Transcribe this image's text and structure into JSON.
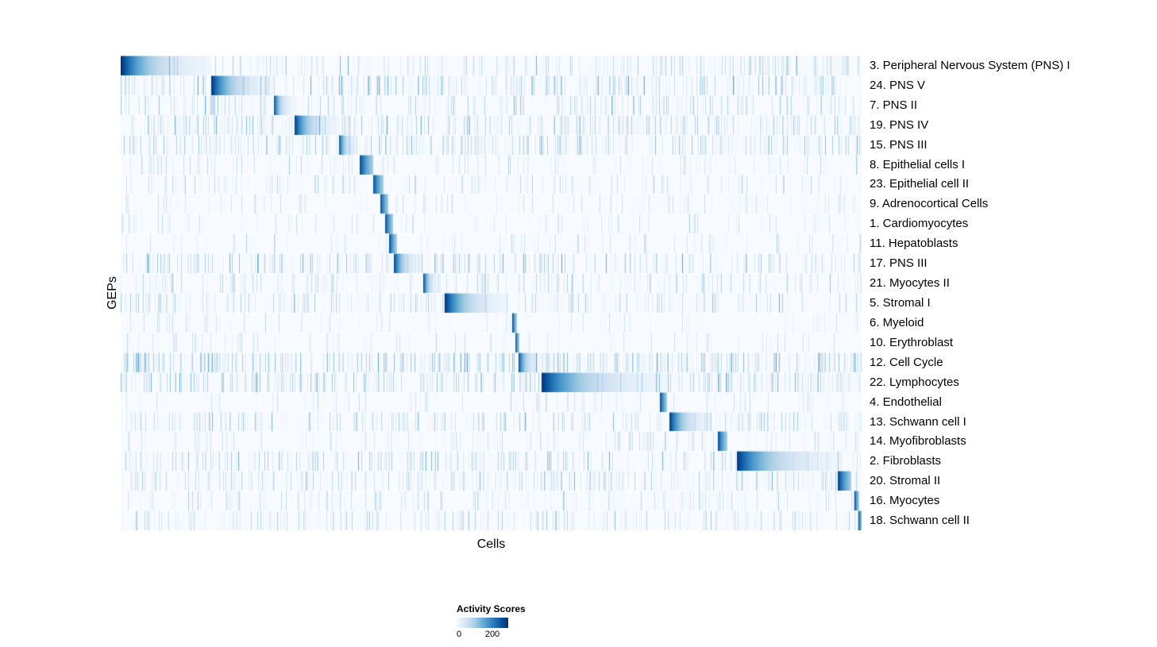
{
  "chart_data": {
    "type": "heatmap",
    "title": "",
    "xlabel": "Cells",
    "ylabel": "GEPs",
    "x_tick_labels": [],
    "color_scale_max": 250,
    "colormap": [
      "#f7fbff",
      "#deebf7",
      "#c6dbef",
      "#9ecae1",
      "#6baed6",
      "#4292c6",
      "#2171b5",
      "#08519c",
      "#08306b"
    ],
    "legend": {
      "title": "Activity Scores",
      "min": 0,
      "max": 200,
      "tick_labels": [
        "0",
        "200"
      ]
    },
    "rows": [
      {
        "label": "3. Peripheral Nervous System (PNS) I",
        "block_start": 0.0,
        "block_end": 0.122,
        "peak": 250,
        "noise_freq": 0.3,
        "noise_amp": 90
      },
      {
        "label": "24. PNS V",
        "block_start": 0.122,
        "block_end": 0.206,
        "peak": 245,
        "noise_freq": 0.32,
        "noise_amp": 100
      },
      {
        "label": "7. PNS II",
        "block_start": 0.206,
        "block_end": 0.233,
        "peak": 235,
        "noise_freq": 0.28,
        "noise_amp": 95
      },
      {
        "label": "19. PNS IV",
        "block_start": 0.234,
        "block_end": 0.294,
        "peak": 240,
        "noise_freq": 0.34,
        "noise_amp": 100
      },
      {
        "label": "15. PNS III",
        "block_start": 0.294,
        "block_end": 0.32,
        "peak": 225,
        "noise_freq": 0.38,
        "noise_amp": 90
      },
      {
        "label": "8. Epithelial cells I",
        "block_start": 0.322,
        "block_end": 0.34,
        "peak": 230,
        "noise_freq": 0.14,
        "noise_amp": 70
      },
      {
        "label": "23. Epithelial cell II",
        "block_start": 0.34,
        "block_end": 0.354,
        "peak": 230,
        "noise_freq": 0.16,
        "noise_amp": 75
      },
      {
        "label": "9. Adrenocortical Cells",
        "block_start": 0.35,
        "block_end": 0.361,
        "peak": 225,
        "noise_freq": 0.12,
        "noise_amp": 65
      },
      {
        "label": "1. Cardiomyocytes",
        "block_start": 0.356,
        "block_end": 0.367,
        "peak": 235,
        "noise_freq": 0.12,
        "noise_amp": 65
      },
      {
        "label": "11. Hepatoblasts",
        "block_start": 0.362,
        "block_end": 0.372,
        "peak": 225,
        "noise_freq": 0.1,
        "noise_amp": 60
      },
      {
        "label": "17. PNS III",
        "block_start": 0.368,
        "block_end": 0.406,
        "peak": 240,
        "noise_freq": 0.3,
        "noise_amp": 100
      },
      {
        "label": "21. Myocytes II",
        "block_start": 0.408,
        "block_end": 0.43,
        "peak": 230,
        "noise_freq": 0.22,
        "noise_amp": 80
      },
      {
        "label": "5. Stromal I",
        "block_start": 0.437,
        "block_end": 0.523,
        "peak": 245,
        "noise_freq": 0.26,
        "noise_amp": 90
      },
      {
        "label": "6. Myeloid",
        "block_start": 0.528,
        "block_end": 0.534,
        "peak": 230,
        "noise_freq": 0.1,
        "noise_amp": 60
      },
      {
        "label": "10. Erythroblast",
        "block_start": 0.532,
        "block_end": 0.538,
        "peak": 225,
        "noise_freq": 0.1,
        "noise_amp": 60
      },
      {
        "label": "12. Cell Cycle",
        "block_start": 0.536,
        "block_end": 0.567,
        "peak": 235,
        "noise_freq": 0.48,
        "noise_amp": 110
      },
      {
        "label": "22. Lymphocytes",
        "block_start": 0.567,
        "block_end": 0.737,
        "peak": 250,
        "noise_freq": 0.38,
        "noise_amp": 105
      },
      {
        "label": "4. Endothelial",
        "block_start": 0.727,
        "block_end": 0.737,
        "peak": 235,
        "noise_freq": 0.12,
        "noise_amp": 65
      },
      {
        "label": "13. Schwann cell I",
        "block_start": 0.74,
        "block_end": 0.797,
        "peak": 245,
        "noise_freq": 0.3,
        "noise_amp": 95
      },
      {
        "label": "14. Myofibroblasts",
        "block_start": 0.805,
        "block_end": 0.818,
        "peak": 235,
        "noise_freq": 0.16,
        "noise_amp": 70
      },
      {
        "label": "2. Fibroblasts",
        "block_start": 0.831,
        "block_end": 0.973,
        "peak": 245,
        "noise_freq": 0.3,
        "noise_amp": 95
      },
      {
        "label": "20. Stromal II",
        "block_start": 0.967,
        "block_end": 0.985,
        "peak": 245,
        "noise_freq": 0.3,
        "noise_amp": 85
      },
      {
        "label": "16. Myocytes",
        "block_start": 0.99,
        "block_end": 0.996,
        "peak": 225,
        "noise_freq": 0.16,
        "noise_amp": 70
      },
      {
        "label": "18. Schwann cell II",
        "block_start": 0.995,
        "block_end": 1.0,
        "peak": 235,
        "noise_freq": 0.26,
        "noise_amp": 85
      }
    ]
  }
}
